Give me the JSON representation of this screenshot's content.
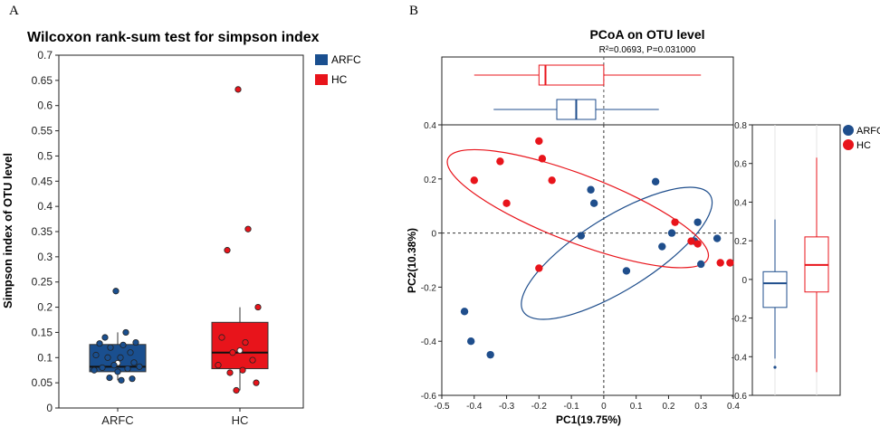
{
  "panel_a": {
    "letter": "A",
    "title": "Wilcoxon rank-sum test for simpson index",
    "ylabel": "Simpson index of OTU level",
    "legend": [
      {
        "label": "ARFC",
        "color": "#1a4f8f"
      },
      {
        "label": "HC",
        "color": "#e8141b"
      }
    ]
  },
  "panel_b": {
    "letter": "B",
    "title": "PCoA on OTU level",
    "subtitle": "R²=0.0693, P=0.031000",
    "xlabel": "PC1(19.75%)",
    "ylabel": "PC2(10.38%)",
    "legend": [
      {
        "label": "ARFC",
        "color": "#1f4e8c"
      },
      {
        "label": "HC",
        "color": "#e8141b"
      }
    ]
  },
  "chart_data": [
    {
      "type": "box",
      "title": "Wilcoxon rank-sum test for simpson index",
      "xlabel": "",
      "ylabel": "Simpson index of OTU level",
      "ylim": [
        0,
        0.7
      ],
      "yticks": [
        0,
        0.05,
        0.1,
        0.15,
        0.2,
        0.25,
        0.3,
        0.35,
        0.4,
        0.45,
        0.5,
        0.55,
        0.6,
        0.65,
        0.7
      ],
      "categories": [
        "ARFC",
        "HC"
      ],
      "series": [
        {
          "name": "ARFC",
          "color": "#1a4f8f",
          "box": {
            "q1": 0.072,
            "median": 0.082,
            "q3": 0.126,
            "min": 0.055,
            "max": 0.15
          },
          "points": [
            0.232,
            0.15,
            0.14,
            0.13,
            0.128,
            0.125,
            0.12,
            0.11,
            0.105,
            0.1,
            0.1,
            0.09,
            0.085,
            0.082,
            0.08,
            0.078,
            0.075,
            0.072,
            0.06,
            0.058,
            0.055
          ]
        },
        {
          "name": "HC",
          "color": "#e8141b",
          "box": {
            "q1": 0.078,
            "median": 0.11,
            "q3": 0.17,
            "min": 0.035,
            "max": 0.2
          },
          "points": [
            0.632,
            0.355,
            0.313,
            0.2,
            0.14,
            0.13,
            0.11,
            0.095,
            0.085,
            0.075,
            0.07,
            0.05,
            0.035
          ]
        }
      ]
    },
    {
      "type": "scatter",
      "title": "PCoA on OTU level",
      "subtitle": "R²=0.0693, P=0.031000",
      "xlabel": "PC1(19.75%)",
      "ylabel": "PC2(10.38%)",
      "xlim": [
        -0.5,
        0.4
      ],
      "ylim": [
        -0.6,
        0.4
      ],
      "xticks": [
        -0.5,
        -0.4,
        -0.3,
        -0.2,
        -0.1,
        0,
        0.1,
        0.2,
        0.3,
        0.4
      ],
      "yticks": [
        -0.6,
        -0.4,
        -0.2,
        0,
        0.2,
        0.4
      ],
      "series": [
        {
          "name": "ARFC",
          "color": "#1f4e8c",
          "x": [
            -0.43,
            -0.41,
            -0.35,
            -0.07,
            -0.04,
            -0.03,
            0.07,
            0.16,
            0.18,
            0.21,
            0.29,
            0.28,
            0.3,
            0.35
          ],
          "y": [
            -0.29,
            -0.4,
            -0.45,
            -0.01,
            0.16,
            0.11,
            -0.14,
            0.19,
            -0.05,
            0.0,
            0.04,
            -0.03,
            -0.115,
            -0.02
          ],
          "ellipse": {
            "cx": 0.04,
            "cy": -0.075,
            "rx": 0.34,
            "ry": 0.135,
            "angle_deg": 32
          }
        },
        {
          "name": "HC",
          "color": "#e8141b",
          "x": [
            -0.4,
            -0.32,
            -0.3,
            -0.2,
            -0.19,
            -0.16,
            -0.2,
            0.22,
            0.27,
            0.29,
            0.36,
            0.39
          ],
          "y": [
            0.195,
            0.265,
            0.11,
            0.34,
            0.275,
            0.195,
            -0.13,
            0.04,
            -0.03,
            -0.04,
            -0.11,
            -0.11
          ],
          "ellipse": {
            "cx": -0.08,
            "cy": 0.09,
            "rx": 0.43,
            "ry": 0.125,
            "angle_deg": -21
          }
        }
      ],
      "top_boxplot": [
        {
          "name": "HC",
          "min": -0.4,
          "q1": -0.2,
          "median": -0.18,
          "q3": 0.0,
          "max": 0.3
        },
        {
          "name": "ARFC",
          "min": -0.34,
          "q1": -0.145,
          "median": -0.085,
          "q3": -0.025,
          "max": 0.17
        }
      ],
      "side_boxplot": {
        "ylim": [
          -0.6,
          0.8
        ],
        "yticks": [
          -0.6,
          -0.4,
          -0.2,
          0,
          0.2,
          0.4,
          0.6,
          0.8
        ],
        "boxes": [
          {
            "name": "ARFC",
            "min": -0.41,
            "q1": -0.145,
            "median": -0.02,
            "q3": 0.04,
            "max": 0.31,
            "outliers": [
              -0.455
            ]
          },
          {
            "name": "HC",
            "min": -0.48,
            "q1": -0.065,
            "median": 0.075,
            "q3": 0.22,
            "max": 0.63,
            "outliers": []
          }
        ]
      }
    }
  ]
}
